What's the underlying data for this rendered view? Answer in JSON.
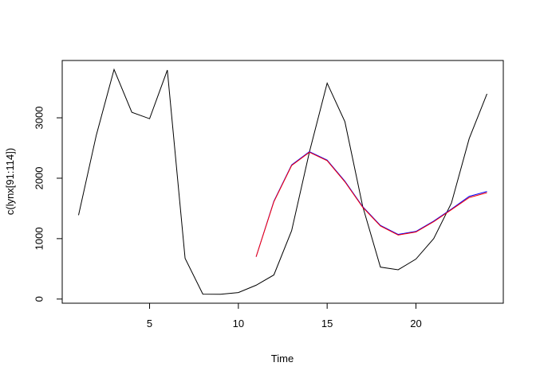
{
  "chart_data": {
    "type": "line",
    "x_label": "Time",
    "y_label": "c(lynx[91:114])",
    "x": [
      1,
      2,
      3,
      4,
      5,
      6,
      7,
      8,
      9,
      10,
      11,
      12,
      13,
      14,
      15,
      16,
      17,
      18,
      19,
      20,
      21,
      22,
      23,
      24
    ],
    "series": [
      {
        "color": "#000000",
        "values": [
          1388,
          2713,
          3800,
          3091,
          2985,
          3790,
          674,
          81,
          80,
          108,
          229,
          399,
          1132,
          2432,
          3574,
          2935,
          1537,
          529,
          485,
          662,
          1000,
          1590,
          2657,
          3396
        ]
      },
      {
        "color": "#0000ff",
        "values": [
          null,
          null,
          null,
          null,
          null,
          null,
          null,
          null,
          null,
          null,
          700,
          1620,
          2220,
          2440,
          2300,
          1950,
          1530,
          1220,
          1070,
          1120,
          1290,
          1490,
          1700,
          1780
        ]
      },
      {
        "color": "#ff0000",
        "values": [
          null,
          null,
          null,
          null,
          null,
          null,
          null,
          null,
          null,
          null,
          700,
          1610,
          2210,
          2430,
          2290,
          1940,
          1520,
          1210,
          1060,
          1110,
          1280,
          1480,
          1680,
          1760
        ]
      }
    ],
    "xlim": [
      0.08,
      24.92
    ],
    "ylim": [
      -68.8,
      3948.8
    ],
    "xticks": [
      5,
      10,
      15,
      20
    ],
    "yticks": [
      0,
      1000,
      2000,
      3000
    ]
  }
}
